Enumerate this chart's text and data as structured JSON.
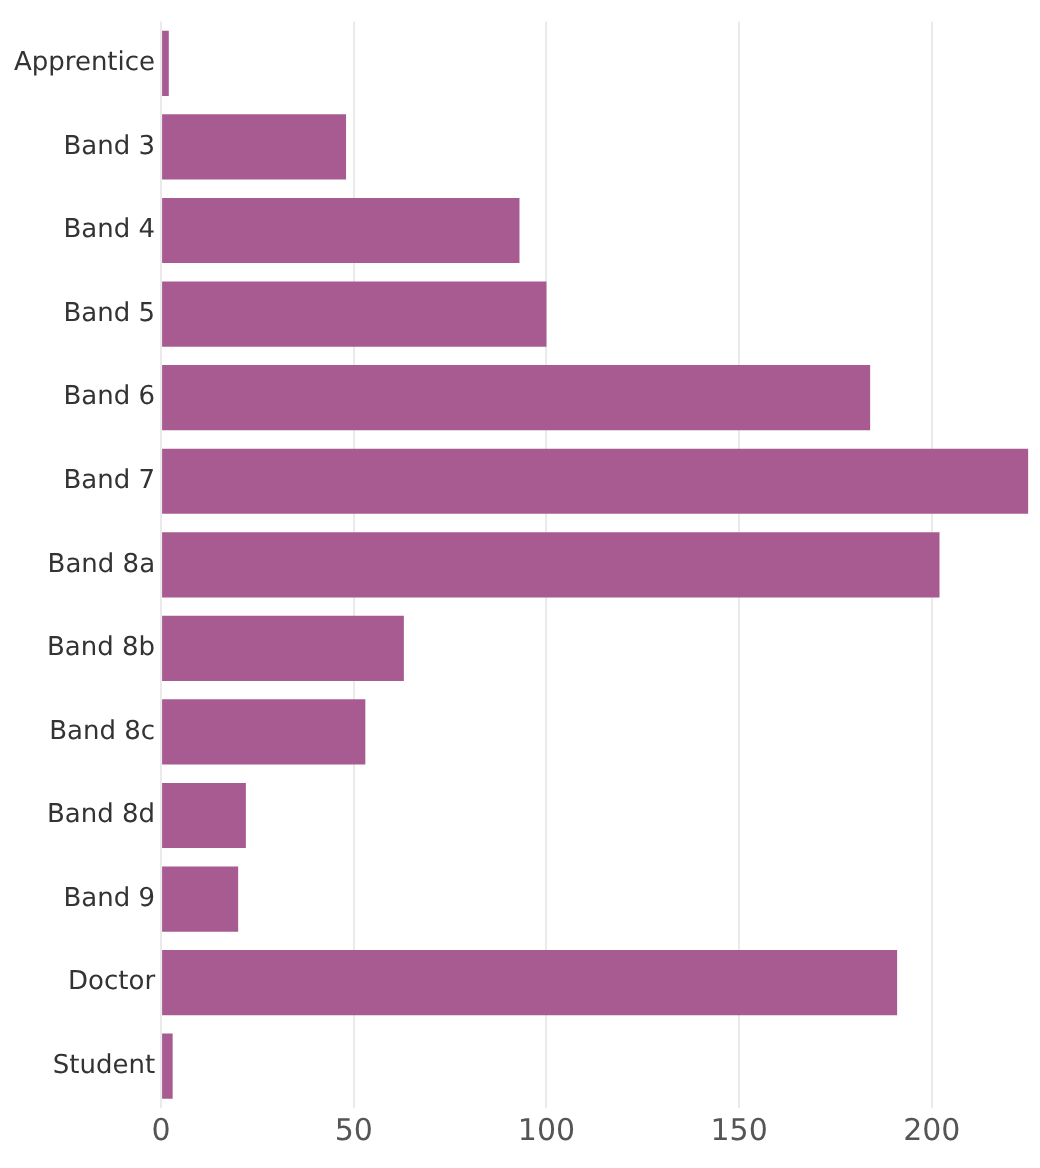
{
  "chart_data": {
    "type": "bar",
    "orientation": "horizontal",
    "categories": [
      "Apprentice",
      "Band 3",
      "Band 4",
      "Band 5",
      "Band 6",
      "Band 7",
      "Band 8a",
      "Band 8b",
      "Band 8c",
      "Band 8d",
      "Band 9",
      "Doctor",
      "Student"
    ],
    "values": [
      2,
      48,
      93,
      100,
      184,
      225,
      202,
      63,
      53,
      22,
      20,
      191,
      3
    ],
    "color": "#a85b91",
    "xlim": [
      0,
      226
    ],
    "xticks": [
      0,
      50,
      100,
      150,
      200
    ],
    "grid": "x",
    "legend": false
  }
}
